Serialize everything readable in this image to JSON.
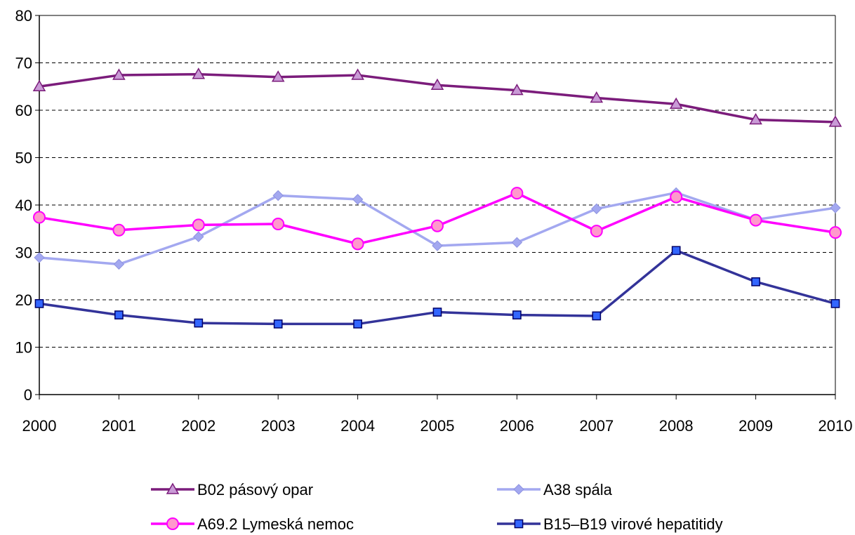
{
  "chart_data": {
    "type": "line",
    "title": "",
    "xlabel": "",
    "ylabel": "",
    "x": [
      "2000",
      "2001",
      "2002",
      "2003",
      "2004",
      "2005",
      "2006",
      "2007",
      "2008",
      "2009",
      "2010"
    ],
    "ylim": [
      0,
      80
    ],
    "yticks": [
      0,
      10,
      20,
      30,
      40,
      50,
      60,
      70,
      80
    ],
    "grid": "horizontal dashed",
    "legend_position": "bottom",
    "series": [
      {
        "name": "B02 pásový opar",
        "color": "#7B1C7B",
        "marker": "triangle",
        "marker_fill": "#C99AD6",
        "values": [
          65.0,
          67.4,
          67.6,
          67.0,
          67.4,
          65.3,
          64.2,
          62.6,
          61.3,
          58.0,
          57.5
        ]
      },
      {
        "name": "A38 spála",
        "color": "#A3A8F0",
        "marker": "diamond",
        "marker_fill": "#A3A8F0",
        "values": [
          28.9,
          27.5,
          33.3,
          42.0,
          41.2,
          31.4,
          32.1,
          39.2,
          42.6,
          36.9,
          39.4
        ]
      },
      {
        "name": "A69.2 Lymeská nemoc",
        "color": "#FF00FF",
        "marker": "circle",
        "marker_fill": "#FF99CC",
        "values": [
          37.4,
          34.7,
          35.8,
          36.0,
          31.8,
          35.6,
          42.5,
          34.5,
          41.7,
          36.8,
          34.2
        ]
      },
      {
        "name": "B15–B19 virové hepatitidy",
        "color": "#333399",
        "marker": "square",
        "marker_fill": "#3366FF",
        "values": [
          19.2,
          16.8,
          15.1,
          14.9,
          14.9,
          17.4,
          16.8,
          16.6,
          30.4,
          23.8,
          19.2
        ]
      }
    ]
  }
}
